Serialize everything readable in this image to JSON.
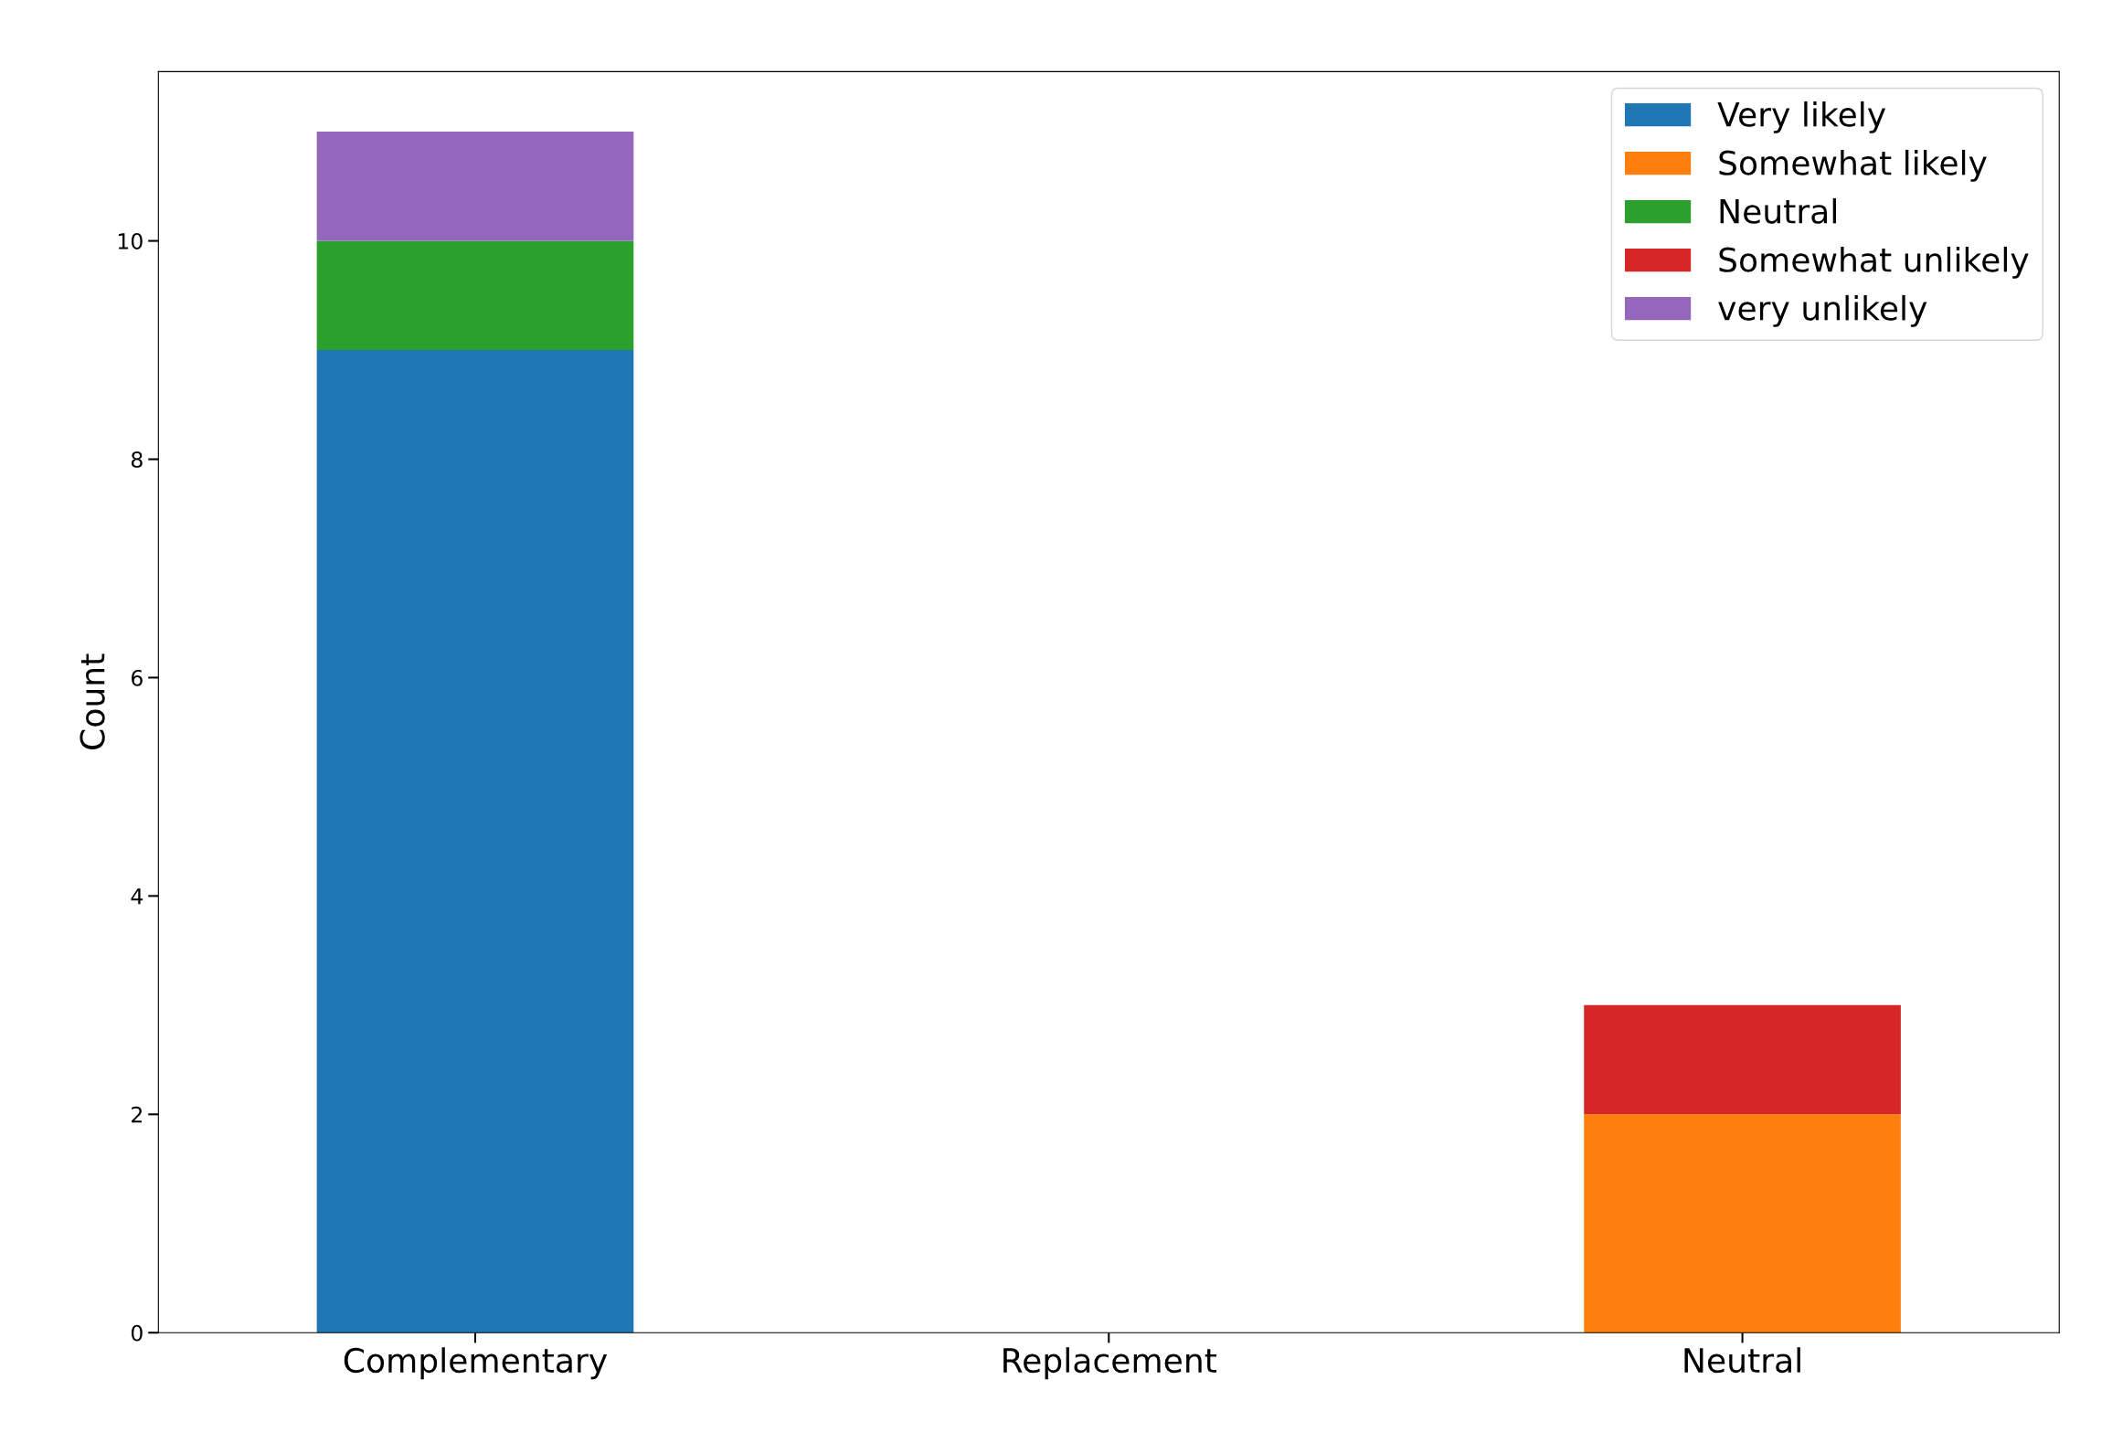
{
  "chart_data": {
    "type": "bar",
    "stacked": true,
    "ylabel": "Count",
    "categories": [
      "Complementary",
      "Replacement",
      "Neutral"
    ],
    "series": [
      {
        "name": "Very likely",
        "color": "#1f77b4",
        "values": [
          9,
          0,
          0
        ]
      },
      {
        "name": "Somewhat likely",
        "color": "#ff7f0e",
        "values": [
          0,
          0,
          2
        ]
      },
      {
        "name": "Neutral",
        "color": "#2ca02c",
        "values": [
          1,
          0,
          0
        ]
      },
      {
        "name": "Somewhat unlikely",
        "color": "#d62728",
        "values": [
          0,
          0,
          1
        ]
      },
      {
        "name": "very unlikely",
        "color": "#9467bd",
        "values": [
          1,
          0,
          0
        ]
      }
    ],
    "ylim": [
      0,
      11.55
    ],
    "yticks": [
      0,
      2,
      4,
      6,
      8,
      10
    ],
    "grid": false,
    "legend": "top right"
  }
}
